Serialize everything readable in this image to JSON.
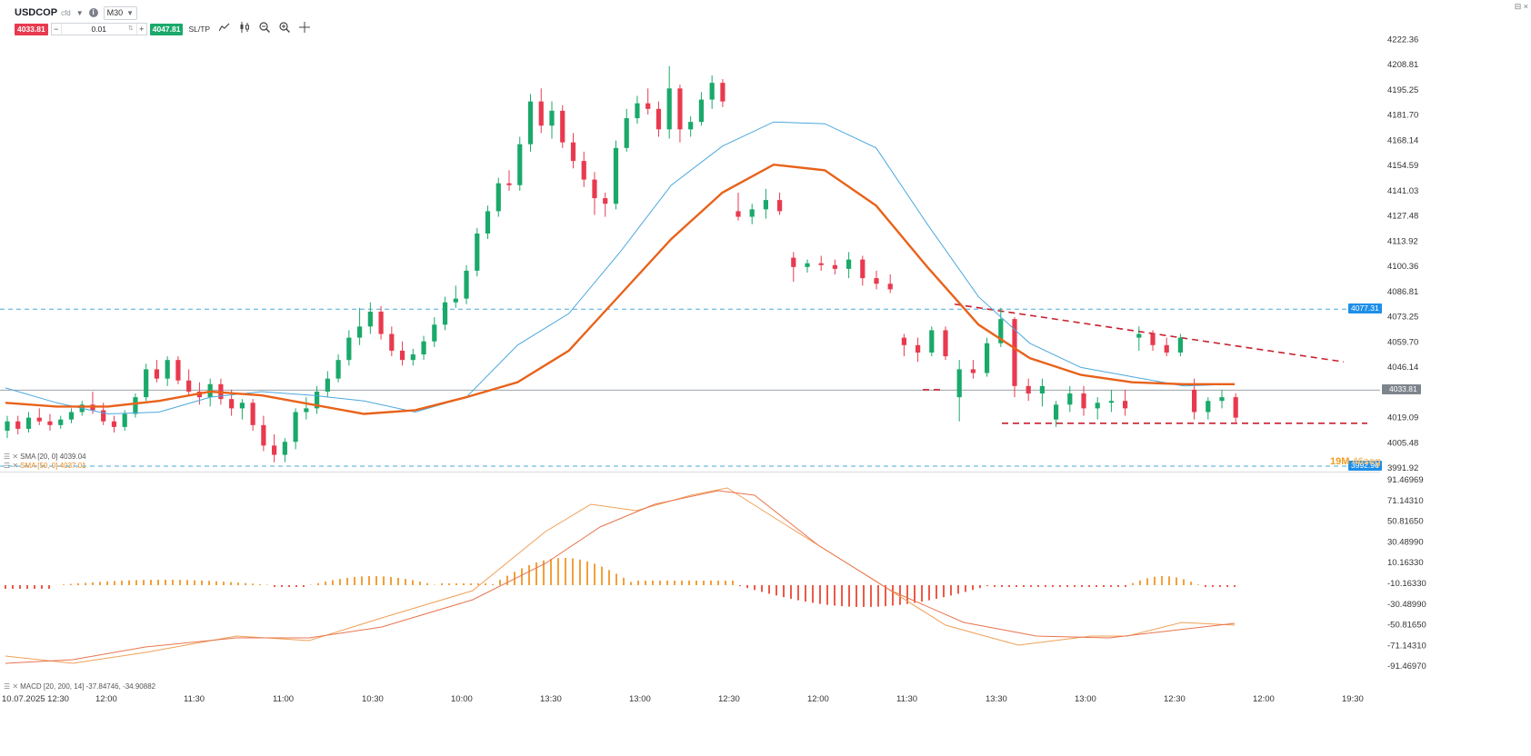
{
  "header": {
    "symbol": "USDCOP",
    "symbol_tag": "cfd",
    "timeframe": "M30",
    "window_controls": "⊟ ×"
  },
  "trade": {
    "sell_price": "4033.81",
    "volume": "0.01",
    "buy_price": "4047.81",
    "minus": "−",
    "plus": "+",
    "sltp_label": "SL/TP"
  },
  "legend": {
    "sma20": "SMA [20, 0] 4039.04",
    "sma50": "SMA [50, 0] 4037.01",
    "macd": "MACD [20, 200, 14] -37.84746, -34.90882"
  },
  "countdown": {
    "minutes": "19M",
    "seconds": "46seg"
  },
  "badges": {
    "current_price": "4033.81",
    "level_upper": "4077.31",
    "level_lower": "3992.96"
  },
  "colors": {
    "up": "#1aa96a",
    "down": "#e83a4f",
    "sma20": "#4aa8de",
    "sma50": "#e8621a",
    "level_line": "#4aa8de",
    "trendline": "#c8202f",
    "macd_hist_pos": "#f2a03a",
    "macd_hist_neg": "#ec5a48",
    "macd_line": "#f0a057",
    "signal_line": "#e8744e",
    "badge_blue": "#1e8fe8",
    "badge_gray": "#7e848c"
  },
  "icons": [
    "info-icon",
    "chevron-down-icon",
    "line-chart-icon",
    "candles-icon",
    "zoom-out-icon",
    "zoom-in-icon",
    "crosshair-icon"
  ],
  "chart_data": {
    "type": "candlestick",
    "price_axis_ticks": [
      "4222.36",
      "4208.81",
      "4195.25",
      "4181.70",
      "4168.14",
      "4154.59",
      "4141.03",
      "4127.48",
      "4113.92",
      "4100.36",
      "4086.81",
      "4073.25",
      "4059.70",
      "4046.14",
      "4019.09",
      "4005.48",
      "3991.92"
    ],
    "macd_axis_ticks": [
      "91.46969",
      "71.14310",
      "50.81650",
      "30.48990",
      "10.16330",
      "-10.16330",
      "-30.48990",
      "-50.81650",
      "-71.14310",
      "-91.46970"
    ],
    "time_labels": [
      "10.07.2025 12:30",
      "12:00",
      "11:30",
      "11:00",
      "10:30",
      "10:00",
      "13:30",
      "13:00",
      "12:30",
      "12:00",
      "11:30",
      "13:30",
      "13:00",
      "12:30",
      "12:00",
      "19:30"
    ],
    "price_range": [
      3990,
      4224
    ],
    "horizontal_levels": [
      4077.31,
      3992.96
    ],
    "current_price": 4033.81,
    "candles_ohlc_approx": [
      [
        4012,
        4020,
        4008,
        4017
      ],
      [
        4017,
        4020,
        4010,
        4013
      ],
      [
        4013,
        4022,
        4011,
        4019
      ],
      [
        4019,
        4024,
        4015,
        4017
      ],
      [
        4017,
        4021,
        4012,
        4015
      ],
      [
        4015,
        4020,
        4013,
        4018
      ],
      [
        4018,
        4024,
        4016,
        4022
      ],
      [
        4022,
        4028,
        4020,
        4026
      ],
      [
        4026,
        4033,
        4021,
        4023
      ],
      [
        4023,
        4027,
        4015,
        4017
      ],
      [
        4017,
        4020,
        4011,
        4014
      ],
      [
        4014,
        4023,
        4012,
        4021
      ],
      [
        4021,
        4032,
        4019,
        4030
      ],
      [
        4030,
        4048,
        4028,
        4045
      ],
      [
        4045,
        4050,
        4038,
        4040
      ],
      [
        4040,
        4052,
        4036,
        4050
      ],
      [
        4050,
        4052,
        4037,
        4039
      ],
      [
        4039,
        4045,
        4031,
        4033
      ],
      [
        4033,
        4038,
        4026,
        4030
      ],
      [
        4030,
        4040,
        4025,
        4037
      ],
      [
        4037,
        4040,
        4026,
        4029
      ],
      [
        4029,
        4034,
        4020,
        4024
      ],
      [
        4024,
        4029,
        4018,
        4027
      ],
      [
        4027,
        4029,
        4012,
        4015
      ],
      [
        4015,
        4020,
        4001,
        4004
      ],
      [
        4004,
        4010,
        3995,
        3999
      ],
      [
        3999,
        4008,
        3995,
        4006
      ],
      [
        4006,
        4024,
        4002,
        4022
      ],
      [
        4022,
        4030,
        4018,
        4024
      ],
      [
        4024,
        4036,
        4021,
        4033
      ],
      [
        4033,
        4044,
        4030,
        4040
      ],
      [
        4040,
        4053,
        4038,
        4050
      ],
      [
        4050,
        4066,
        4047,
        4062
      ],
      [
        4062,
        4078,
        4058,
        4068
      ],
      [
        4068,
        4081,
        4064,
        4076
      ],
      [
        4076,
        4079,
        4061,
        4064
      ],
      [
        4064,
        4068,
        4052,
        4055
      ],
      [
        4055,
        4060,
        4047,
        4050
      ],
      [
        4050,
        4056,
        4047,
        4053
      ],
      [
        4053,
        4063,
        4050,
        4060
      ],
      [
        4060,
        4073,
        4057,
        4069
      ],
      [
        4069,
        4084,
        4066,
        4081
      ],
      [
        4081,
        4090,
        4078,
        4083
      ],
      [
        4083,
        4101,
        4080,
        4098
      ],
      [
        4098,
        4121,
        4095,
        4118
      ],
      [
        4118,
        4133,
        4115,
        4130
      ],
      [
        4130,
        4148,
        4127,
        4145
      ],
      [
        4145,
        4152,
        4141,
        4144
      ],
      [
        4144,
        4170,
        4141,
        4166
      ],
      [
        4166,
        4193,
        4162,
        4189
      ],
      [
        4189,
        4196,
        4172,
        4176
      ],
      [
        4176,
        4189,
        4169,
        4184
      ],
      [
        4184,
        4187,
        4164,
        4167
      ],
      [
        4167,
        4172,
        4153,
        4157
      ],
      [
        4157,
        4162,
        4143,
        4147
      ],
      [
        4147,
        4151,
        4128,
        4137
      ],
      [
        4137,
        4140,
        4127,
        4134
      ],
      [
        4134,
        4168,
        4131,
        4164
      ],
      [
        4164,
        4185,
        4162,
        4180
      ],
      [
        4180,
        4192,
        4177,
        4188
      ],
      [
        4188,
        4196,
        4182,
        4185
      ],
      [
        4185,
        4189,
        4170,
        4174
      ],
      [
        4174,
        4208,
        4169,
        4196
      ],
      [
        4196,
        4198,
        4167,
        4174
      ],
      [
        4174,
        4181,
        4170,
        4178
      ],
      [
        4178,
        4194,
        4176,
        4190
      ],
      [
        4190,
        4203,
        4185,
        4199
      ],
      [
        4199,
        4201,
        4186,
        4189
      ]
    ],
    "sma20": [
      4035,
      4027,
      4021,
      4022,
      4030,
      4033,
      4031,
      4028,
      4022,
      4030,
      4058,
      4075,
      4108,
      4144,
      4165,
      4178,
      4177,
      4164,
      4123,
      4084,
      4059,
      4046,
      4041,
      4036,
      4037
    ],
    "sma50": [
      4027,
      4025,
      4025,
      4028,
      4033,
      4031,
      4026,
      4021,
      4023,
      4030,
      4038,
      4055,
      4085,
      4115,
      4140,
      4155,
      4152,
      4133,
      4100,
      4069,
      4051,
      4042,
      4038,
      4037,
      4037
    ],
    "macd_histogram_trend": "positive hump around 13:30 (~30), negative trough around 11:30-13:30 (~-25), small positive near 12:30"
  }
}
